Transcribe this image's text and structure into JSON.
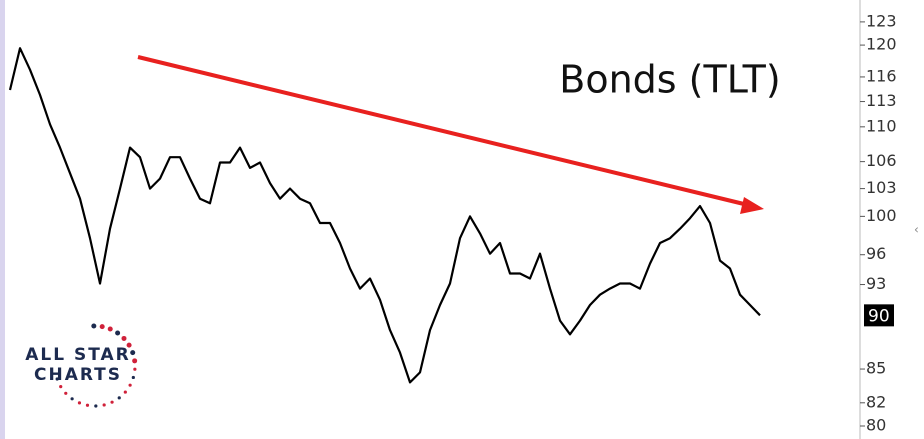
{
  "chart_data": {
    "type": "line",
    "title": "Bonds (TLT)",
    "logo": [
      "ALL STAR",
      "CHARTS"
    ],
    "series": [
      {
        "name": "TLT",
        "color": "#000000",
        "values": [
          114.4,
          119.6,
          116.9,
          113.8,
          110.3,
          107.6,
          104.7,
          101.9,
          97.7,
          93.1,
          98.7,
          103,
          107.6,
          106.5,
          103,
          104.1,
          106.5,
          106.5,
          104.1,
          101.9,
          101.4,
          105.9,
          105.9,
          107.6,
          105.3,
          105.9,
          103.6,
          101.9,
          103,
          101.9,
          101.4,
          99.3,
          99.3,
          97.2,
          94.6,
          92.6,
          93.6,
          91.5,
          88.6,
          86.5,
          83.8,
          84.7,
          88.6,
          91,
          93.1,
          97.7,
          100,
          98.2,
          96.1,
          97.2,
          94.1,
          94.1,
          93.6,
          96.1,
          92.6,
          89.5,
          88.2,
          89.5,
          91,
          92,
          92.6,
          93.1,
          93.1,
          92.6,
          95.1,
          97.2,
          97.7,
          98.7,
          99.8,
          101.1,
          99.3,
          95.4,
          94.6,
          92,
          91,
          90
        ]
      }
    ],
    "last_price": 90,
    "ylim": [
      78.9,
      125.9
    ],
    "log_scale": true,
    "yticks": [
      123,
      120,
      116,
      113,
      110,
      106,
      103,
      100,
      96,
      93,
      85,
      82,
      80
    ],
    "arrow_color": "#e8211f"
  }
}
